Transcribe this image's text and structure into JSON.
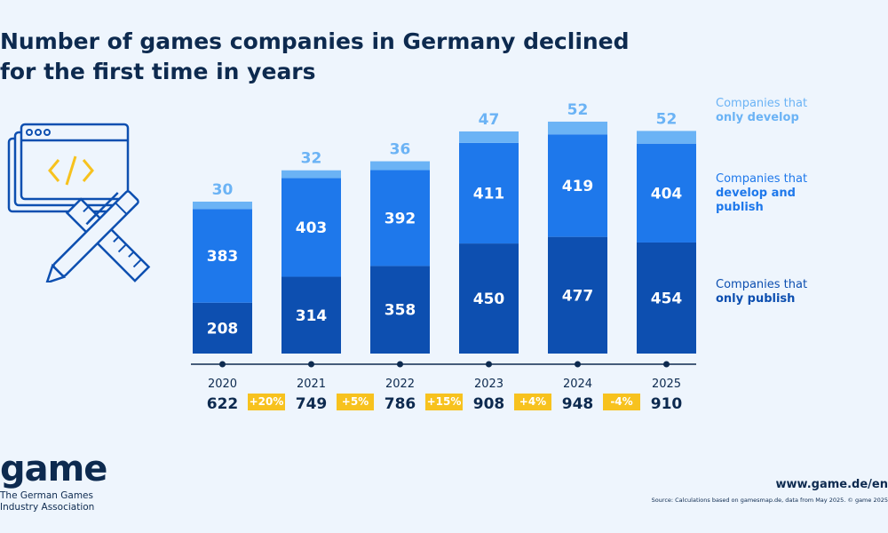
{
  "title": {
    "line1": "Number of games companies in Germany declined",
    "line2": "for the first time in years"
  },
  "legend": [
    {
      "plain": "Companies that",
      "bold": "only develop",
      "color": "#6bb3f5"
    },
    {
      "plain": "Companies that",
      "bold": "develop and",
      "bold2": "publish",
      "color": "#1e78eb"
    },
    {
      "plain": "Companies that",
      "bold": "only publish",
      "color": "#0d4fb0"
    }
  ],
  "chart_data": {
    "type": "bar",
    "stacked": true,
    "categories": [
      "2020",
      "2021",
      "2022",
      "2023",
      "2024",
      "2025"
    ],
    "series": [
      {
        "name": "Companies that only publish",
        "values": [
          208,
          314,
          358,
          450,
          477,
          454
        ],
        "color": "#0d4fb0"
      },
      {
        "name": "Companies that develop and publish",
        "values": [
          383,
          403,
          392,
          411,
          419,
          404
        ],
        "color": "#1e78eb"
      },
      {
        "name": "Companies that only develop",
        "values": [
          30,
          32,
          36,
          47,
          52,
          52
        ],
        "color": "#6bb3f5"
      }
    ],
    "totals": [
      "622",
      "749",
      "786",
      "908",
      "948",
      "910"
    ],
    "growth": [
      "+20%",
      "+5%",
      "+15%",
      "+4%",
      "-4%"
    ],
    "ylim": [
      0,
      980
    ],
    "grid": false,
    "legend_position": "right"
  },
  "logo": {
    "word": "game",
    "sub1": "The German Games",
    "sub2": "Industry Association"
  },
  "url": "www.game.de/en",
  "source": "Source: Calculations based on gamesmap.de, data from May 2025. © game 2025"
}
